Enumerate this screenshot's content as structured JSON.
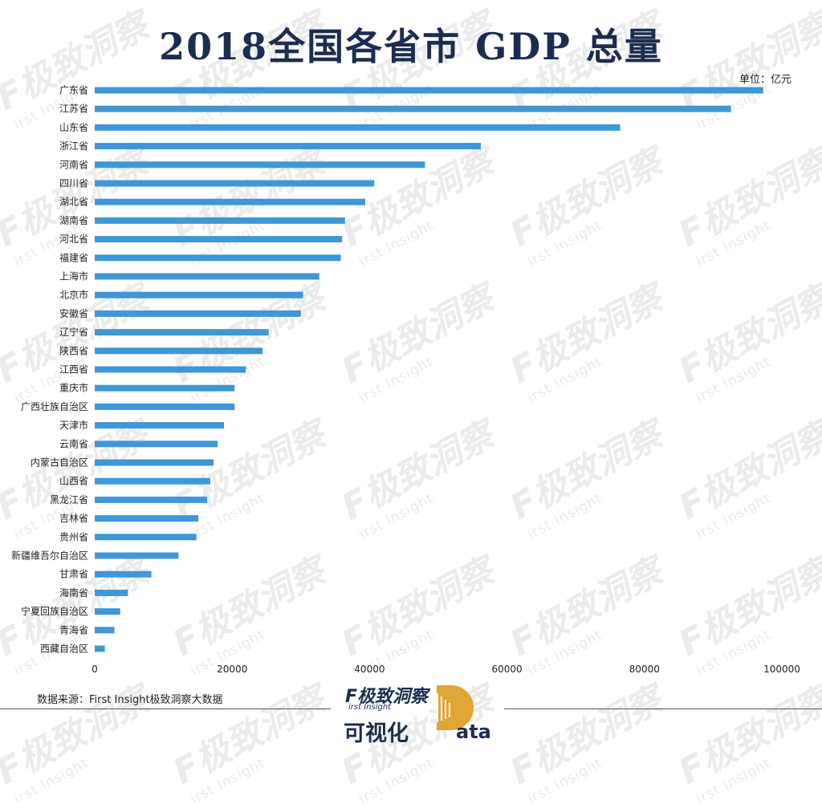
{
  "watermark": {
    "main": "F极致洞察",
    "sub": "irst Insight"
  },
  "header": {
    "title": "2018全国各省市 GDP 总量",
    "unit": "单位：亿元"
  },
  "footer": {
    "source": "数据来源：First Insight极致洞察大数据",
    "logo_top": "F极致洞察",
    "logo_sub": "irst Insight",
    "logo_bottom": "可视化",
    "logo_d": "D",
    "logo_ata": "ata"
  },
  "colors": {
    "bar": "#3d97d8",
    "title": "#1c2d4f"
  },
  "chart_data": {
    "type": "bar",
    "orientation": "horizontal",
    "title": "2018全国各省市 GDP 总量",
    "unit": "单位：亿元",
    "categories": [
      "广东省",
      "江苏省",
      "山东省",
      "浙江省",
      "河南省",
      "四川省",
      "湖北省",
      "湖南省",
      "河北省",
      "福建省",
      "上海市",
      "北京市",
      "安徽省",
      "辽宁省",
      "陕西省",
      "江西省",
      "重庆市",
      "广西壮族自治区",
      "天津市",
      "云南省",
      "内蒙古自治区",
      "山西省",
      "黑龙江省",
      "吉林省",
      "贵州省",
      "新疆维吾尔自治区",
      "甘肃省",
      "海南省",
      "宁夏回族自治区",
      "青海省",
      "西藏自治区"
    ],
    "values": [
      97278,
      92595,
      76470,
      56197,
      48056,
      40678,
      39367,
      36426,
      36010,
      35804,
      32680,
      30320,
      30007,
      25315,
      24438,
      21985,
      20363,
      20353,
      18810,
      17881,
      17289,
      16818,
      16362,
      15075,
      14806,
      12199,
      8246,
      4832,
      3705,
      2865,
      1478
    ],
    "xlim": [
      0,
      100000
    ],
    "xticks": [
      0,
      20000,
      40000,
      60000,
      80000,
      100000
    ],
    "grid": false,
    "legend": "none"
  }
}
